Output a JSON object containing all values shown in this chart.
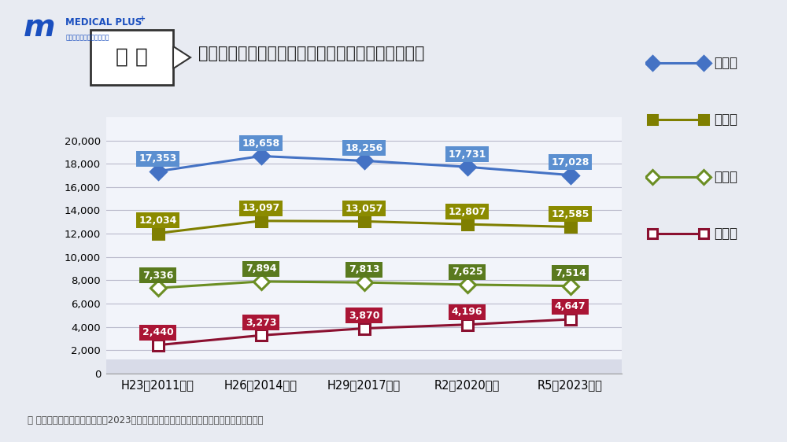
{
  "title_box": "内 科",
  "title_main": "消化器・循環器・呼吸器・糖尿病　診療所数の推移",
  "x_labels": [
    "H23（2011）年",
    "H26（2014）年",
    "H29（2017）年",
    "R2（2020）年",
    "R5（2023）年"
  ],
  "x_values": [
    0,
    1,
    2,
    3,
    4
  ],
  "series": [
    {
      "name": "消化器",
      "values": [
        17353,
        18658,
        18256,
        17731,
        17028
      ],
      "line_color": "#4472C4",
      "marker_color": "#4472C4",
      "marker_style": "D",
      "marker_filled": true,
      "label_bg": "#5B8FD0"
    },
    {
      "name": "循環器",
      "values": [
        12034,
        13097,
        13057,
        12807,
        12585
      ],
      "line_color": "#7F7F00",
      "marker_color": "#7F7F00",
      "marker_style": "s",
      "marker_filled": true,
      "label_bg": "#8B8B00"
    },
    {
      "name": "呼吸器",
      "values": [
        7336,
        7894,
        7813,
        7625,
        7514
      ],
      "line_color": "#6B8E23",
      "marker_color": "#6B8E23",
      "marker_style": "D",
      "marker_filled": false,
      "label_bg": "#5A7A1E"
    },
    {
      "name": "糖尿病",
      "values": [
        2440,
        3273,
        3870,
        4196,
        4647
      ],
      "line_color": "#8B1030",
      "marker_color": "#8B1030",
      "marker_style": "s",
      "marker_filled": false,
      "label_bg": "#AA1535"
    }
  ],
  "ylim": [
    0,
    22000
  ],
  "yticks": [
    0,
    2000,
    4000,
    6000,
    8000,
    10000,
    12000,
    14000,
    16000,
    18000,
    20000
  ],
  "ytick_labels": [
    "0",
    "2,000",
    "4,000",
    "6,000",
    "8,000",
    "10,000",
    "12,000",
    "14,000",
    "16,000",
    "18,000",
    "20,000"
  ],
  "bg_color": "#E8EBF2",
  "plot_bg_top": "#F2F4FA",
  "plot_bg_bottom": "#D8DBE8",
  "grid_color": "#BBBBCC",
  "footnote": "＊ 出典：厚生労働省「令和５（2023）年医療施設（静態・動態）調査・病院報告の概況」",
  "legend_items": [
    {
      "name": "消化器",
      "color": "#4472C4",
      "marker": "D",
      "filled": true
    },
    {
      "name": "循環器",
      "color": "#7F7F00",
      "marker": "s",
      "filled": true
    },
    {
      "name": "呼吸器",
      "color": "#6B8E23",
      "marker": "D",
      "filled": false
    },
    {
      "name": "糖尿病",
      "color": "#8B1030",
      "marker": "s",
      "filled": false
    }
  ]
}
